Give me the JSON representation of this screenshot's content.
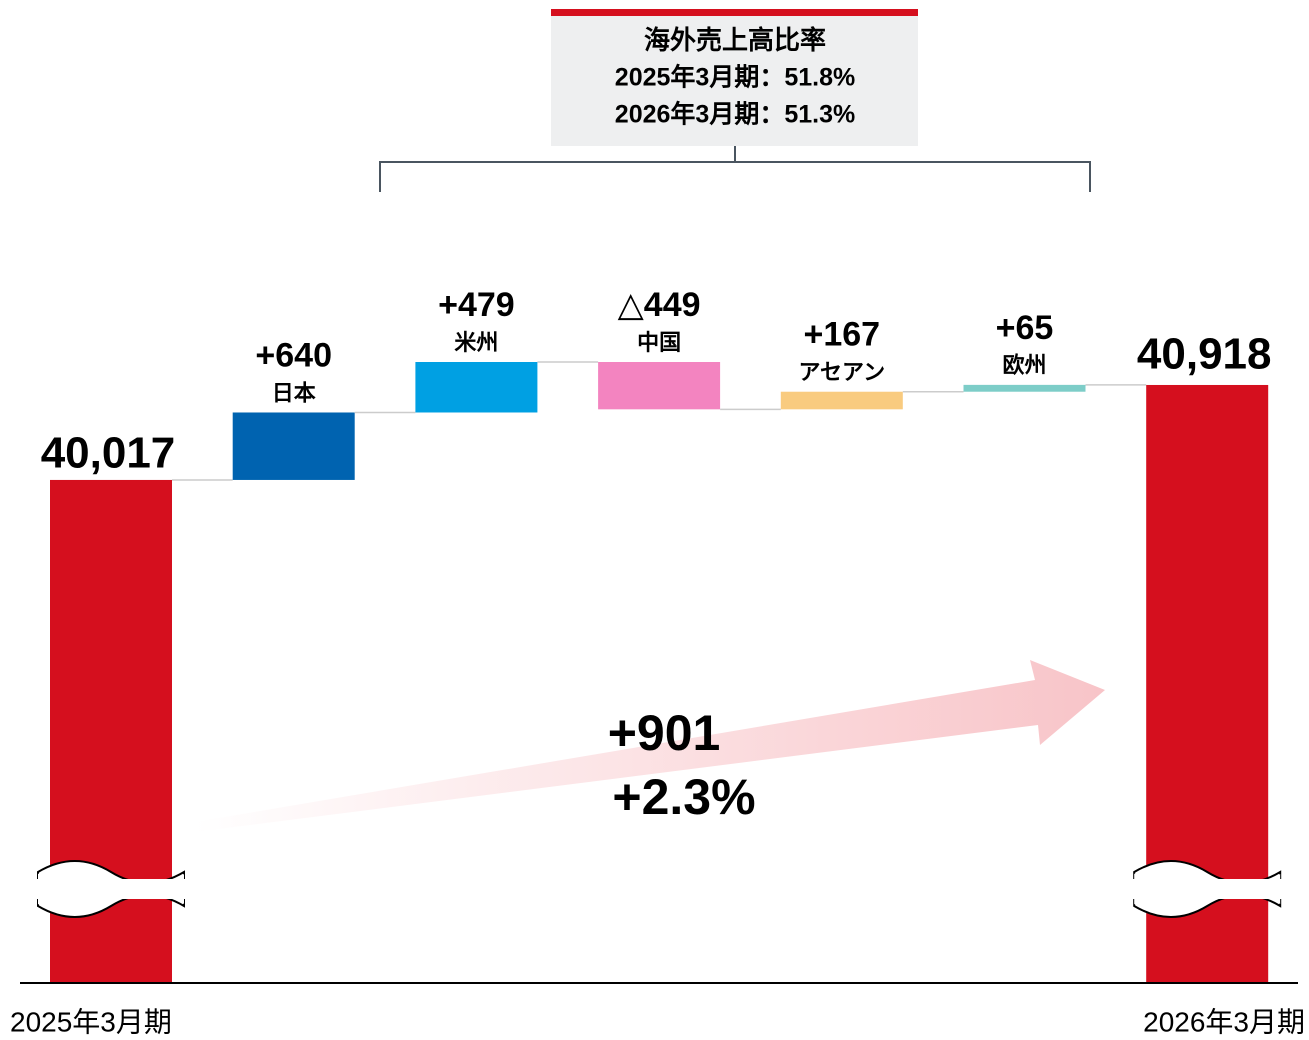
{
  "chart_data": {
    "type": "waterfall",
    "categories": [
      "2025年3月期",
      "日本",
      "米州",
      "中国",
      "アセアン",
      "欧州",
      "2026年3月期"
    ],
    "values": [
      40017,
      640,
      479,
      -449,
      167,
      65,
      40918
    ],
    "value_labels": [
      "40,017",
      "+640",
      "+479",
      "△449",
      "+167",
      "+65",
      "40,918"
    ],
    "colors": [
      "#d50f1e",
      "#0063b0",
      "#00a0e3",
      "#f384c0",
      "#f9cb7f",
      "#7dcdc8",
      "#d50f1e"
    ],
    "box": {
      "title": "海外売上高比率",
      "lines": [
        "2025年3月期：51.8%",
        "2026年3月期：51.3%"
      ]
    },
    "change": {
      "value": 901,
      "label": "+901"
    },
    "change_pct": {
      "value": 2.3,
      "label": "+2.3%"
    }
  }
}
